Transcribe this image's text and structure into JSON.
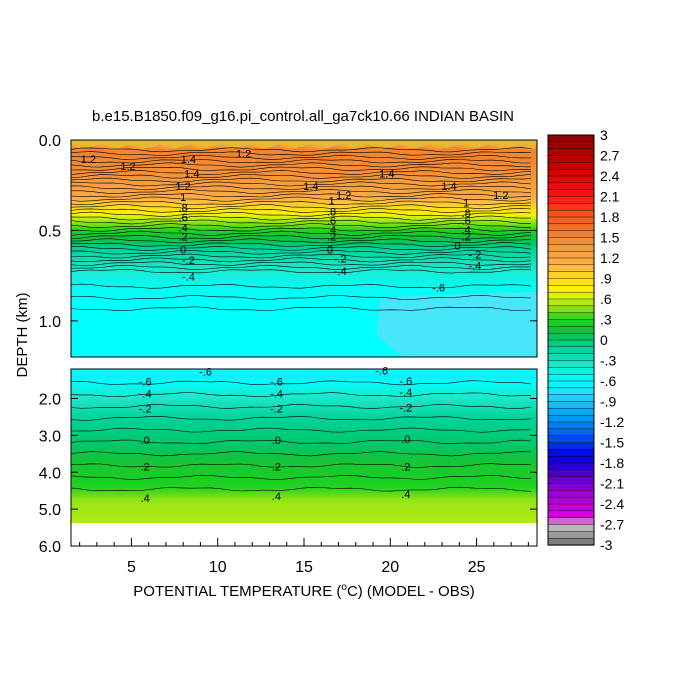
{
  "chart_data": {
    "type": "heatmap",
    "title": "b.e15.B1850.f09_g16.pi_control.all_ga7ck10.66 INDIAN BASIN",
    "xlabel": "POTENTIAL TEMPERATURE (",
    "xlabel_sup": "o",
    "xlabel_rest": "C) (MODEL - OBS)",
    "ylabel": "DEPTH (km)",
    "xlim": [
      1.5,
      28.5
    ],
    "x_ticks": [
      5,
      10,
      15,
      20,
      25
    ],
    "x_tick_labels": [
      "5",
      "10",
      "15",
      "20",
      "25"
    ],
    "upper_panel": {
      "ylim": [
        0.0,
        1.2
      ],
      "y_ticks": [
        0.0,
        0.5,
        1.0
      ],
      "y_tick_labels": [
        "0.0",
        "0.5",
        "1.0"
      ]
    },
    "lower_panel": {
      "ylim": [
        1.2,
        6.0
      ],
      "y_ticks": [
        2.0,
        3.0,
        4.0,
        5.0,
        6.0
      ],
      "y_tick_labels": [
        "2.0",
        "3.0",
        "4.0",
        "5.0",
        "6.0"
      ]
    },
    "colorbar": {
      "min": -3,
      "max": 3,
      "step": 0.1,
      "labels": [
        "3",
        "2.7",
        "2.4",
        "2.1",
        "1.8",
        "1.5",
        "1.2",
        ".9",
        ".6",
        ".3",
        "0",
        "-.3",
        "-.6",
        "-.9",
        "-1.2",
        "-1.5",
        "-1.8",
        "-2.1",
        "-2.4",
        "-2.7",
        "-3"
      ]
    },
    "depth_profile": [
      {
        "depth": 0.0,
        "value": 1.4
      },
      {
        "depth": 0.05,
        "value": 1.5
      },
      {
        "depth": 0.1,
        "value": 1.5
      },
      {
        "depth": 0.2,
        "value": 1.4
      },
      {
        "depth": 0.3,
        "value": 1.2
      },
      {
        "depth": 0.35,
        "value": 1.0
      },
      {
        "depth": 0.4,
        "value": 0.8
      },
      {
        "depth": 0.45,
        "value": 0.5
      },
      {
        "depth": 0.5,
        "value": 0.3
      },
      {
        "depth": 0.55,
        "value": 0.1
      },
      {
        "depth": 0.6,
        "value": -0.1
      },
      {
        "depth": 0.68,
        "value": -0.3
      },
      {
        "depth": 0.78,
        "value": -0.5
      },
      {
        "depth": 0.9,
        "value": -0.6
      },
      {
        "depth": 1.2,
        "value": -0.6
      },
      {
        "depth": 1.4,
        "value": -0.7
      },
      {
        "depth": 1.7,
        "value": -0.5
      },
      {
        "depth": 2.1,
        "value": -0.3
      },
      {
        "depth": 2.6,
        "value": -0.1
      },
      {
        "depth": 3.2,
        "value": 0.0
      },
      {
        "depth": 3.8,
        "value": 0.2
      },
      {
        "depth": 4.4,
        "value": 0.3
      },
      {
        "depth": 4.8,
        "value": 0.5
      },
      {
        "depth": 5.36,
        "value": 0.55
      }
    ],
    "contour_labels_upper": [
      {
        "text": "1.2",
        "x": 2.5,
        "depth": 0.11
      },
      {
        "text": "1.2",
        "x": 4.8,
        "depth": 0.15
      },
      {
        "text": "1.4",
        "x": 8.3,
        "depth": 0.11
      },
      {
        "text": "1.4",
        "x": 8.5,
        "depth": 0.19
      },
      {
        "text": "1.2",
        "x": 11.5,
        "depth": 0.08
      },
      {
        "text": "1.4",
        "x": 15.4,
        "depth": 0.26
      },
      {
        "text": "1.2",
        "x": 17.3,
        "depth": 0.31
      },
      {
        "text": "1.4",
        "x": 19.8,
        "depth": 0.19
      },
      {
        "text": "1.4",
        "x": 23.4,
        "depth": 0.26
      },
      {
        "text": "1.2",
        "x": 26.4,
        "depth": 0.31
      },
      {
        "text": "1.2",
        "x": 8.0,
        "depth": 0.26
      },
      {
        "text": "1",
        "x": 8.0,
        "depth": 0.32
      },
      {
        "text": "1",
        "x": 16.6,
        "depth": 0.34
      },
      {
        "text": "1",
        "x": 24.4,
        "depth": 0.35
      },
      {
        "text": ".8",
        "x": 8.0,
        "depth": 0.38
      },
      {
        "text": ".8",
        "x": 16.6,
        "depth": 0.4
      },
      {
        "text": ".8",
        "x": 24.4,
        "depth": 0.41
      },
      {
        "text": ".6",
        "x": 8.0,
        "depth": 0.43
      },
      {
        "text": ".6",
        "x": 16.6,
        "depth": 0.45
      },
      {
        "text": ".6",
        "x": 24.4,
        "depth": 0.45
      },
      {
        "text": ".4",
        "x": 8.0,
        "depth": 0.49
      },
      {
        "text": ".4",
        "x": 16.6,
        "depth": 0.5
      },
      {
        "text": ".4",
        "x": 24.4,
        "depth": 0.5
      },
      {
        "text": ".2",
        "x": 8.0,
        "depth": 0.54
      },
      {
        "text": ".2",
        "x": 16.6,
        "depth": 0.54
      },
      {
        "text": ".2",
        "x": 24.4,
        "depth": 0.54
      },
      {
        "text": "0",
        "x": 8.0,
        "depth": 0.61
      },
      {
        "text": "0",
        "x": 16.5,
        "depth": 0.61
      },
      {
        "text": "0",
        "x": 23.9,
        "depth": 0.59
      },
      {
        "text": "-.2",
        "x": 8.3,
        "depth": 0.67
      },
      {
        "text": "-.2",
        "x": 17.1,
        "depth": 0.66
      },
      {
        "text": "-.2",
        "x": 24.9,
        "depth": 0.64
      },
      {
        "text": "-.4",
        "x": 8.3,
        "depth": 0.76
      },
      {
        "text": "-.4",
        "x": 17.1,
        "depth": 0.73
      },
      {
        "text": "-.4",
        "x": 24.9,
        "depth": 0.7
      },
      {
        "text": "-.6",
        "x": 22.8,
        "depth": 0.82
      }
    ],
    "contour_labels_lower": [
      {
        "text": "-.6",
        "x": 9.3,
        "depth": 1.3
      },
      {
        "text": "-.6",
        "x": 19.5,
        "depth": 1.27
      },
      {
        "text": "-.6",
        "x": 5.8,
        "depth": 1.57
      },
      {
        "text": "-.6",
        "x": 13.4,
        "depth": 1.57
      },
      {
        "text": "-.6",
        "x": 20.9,
        "depth": 1.55
      },
      {
        "text": "-.4",
        "x": 5.8,
        "depth": 1.89
      },
      {
        "text": "-.4",
        "x": 13.4,
        "depth": 1.89
      },
      {
        "text": "-.4",
        "x": 20.9,
        "depth": 1.85
      },
      {
        "text": "-.2",
        "x": 5.8,
        "depth": 2.3
      },
      {
        "text": "-.2",
        "x": 13.4,
        "depth": 2.3
      },
      {
        "text": "-.2",
        "x": 20.9,
        "depth": 2.27
      },
      {
        "text": ".0",
        "x": 5.8,
        "depth": 3.15
      },
      {
        "text": ".0",
        "x": 13.4,
        "depth": 3.15
      },
      {
        "text": ".0",
        "x": 20.9,
        "depth": 3.12
      },
      {
        "text": ".2",
        "x": 5.8,
        "depth": 3.87
      },
      {
        "text": ".2",
        "x": 13.4,
        "depth": 3.87
      },
      {
        "text": ".2",
        "x": 20.9,
        "depth": 3.87
      },
      {
        "text": ".4",
        "x": 5.8,
        "depth": 4.72
      },
      {
        "text": ".4",
        "x": 13.4,
        "depth": 4.67
      },
      {
        "text": ".4",
        "x": 20.9,
        "depth": 4.62
      }
    ],
    "grid": false,
    "legend": "right colorbar"
  }
}
